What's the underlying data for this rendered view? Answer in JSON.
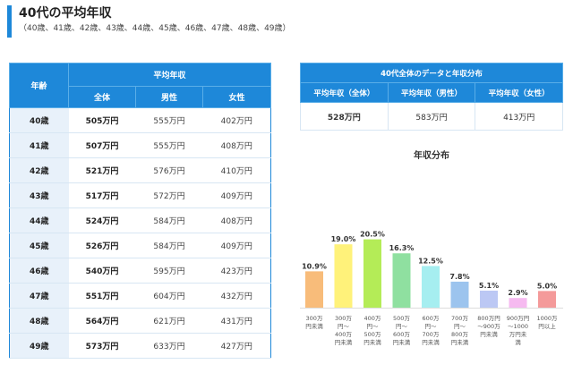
{
  "header": {
    "title": "40代の平均年収",
    "subtitle": "（40歳、41歳、42歳、43歳、44歳、45歳、46歳、47歳、48歳、49歳）"
  },
  "table": {
    "age_header": "年齢",
    "avg_header": "平均年収",
    "col_all": "全体",
    "col_male": "男性",
    "col_female": "女性",
    "rows": [
      {
        "age": "40歳",
        "all": "505万円",
        "male": "555万円",
        "female": "402万円"
      },
      {
        "age": "41歳",
        "all": "507万円",
        "male": "555万円",
        "female": "408万円"
      },
      {
        "age": "42歳",
        "all": "521万円",
        "male": "576万円",
        "female": "410万円"
      },
      {
        "age": "43歳",
        "all": "517万円",
        "male": "572万円",
        "female": "409万円"
      },
      {
        "age": "44歳",
        "all": "524万円",
        "male": "584万円",
        "female": "408万円"
      },
      {
        "age": "45歳",
        "all": "526万円",
        "male": "584万円",
        "female": "409万円"
      },
      {
        "age": "46歳",
        "all": "540万円",
        "male": "595万円",
        "female": "423万円"
      },
      {
        "age": "47歳",
        "all": "551万円",
        "male": "604万円",
        "female": "432万円"
      },
      {
        "age": "48歳",
        "all": "564万円",
        "male": "621万円",
        "female": "431万円"
      },
      {
        "age": "49歳",
        "all": "573万円",
        "male": "633万円",
        "female": "427万円"
      }
    ]
  },
  "summary": {
    "title": "40代全体のデータと年収分布",
    "h_all": "平均年収（全体）",
    "h_male": "平均年収（男性）",
    "h_female": "平均年収（女性）",
    "v_all": "528万円",
    "v_male": "583万円",
    "v_female": "413万円"
  },
  "chart_data": {
    "type": "bar",
    "title": "年収分布",
    "categories": [
      [
        "300万",
        "円未満"
      ],
      [
        "300万",
        "円～",
        "400万",
        "円未満"
      ],
      [
        "400万",
        "円～",
        "500万",
        "円未満"
      ],
      [
        "500万",
        "円～",
        "600万",
        "円未満"
      ],
      [
        "600万",
        "円～",
        "700万",
        "円未満"
      ],
      [
        "700万",
        "円～",
        "800万",
        "円未満"
      ],
      [
        "800万円",
        "～900万",
        "円未満"
      ],
      [
        "900万円",
        "～1000",
        "万円未",
        "満"
      ],
      [
        "1000万",
        "円以上"
      ]
    ],
    "values": [
      10.9,
      19.0,
      20.5,
      16.3,
      12.5,
      7.8,
      5.1,
      2.9,
      5.0
    ],
    "labels": [
      "10.9%",
      "19.0%",
      "20.5%",
      "16.3%",
      "12.5%",
      "7.8%",
      "5.1%",
      "2.9%",
      "5.0%"
    ],
    "colors": [
      "#f8bc7a",
      "#fff27a",
      "#b4ec57",
      "#8fe0a0",
      "#a6eef0",
      "#9cc4ee",
      "#bcc8f4",
      "#f6baf0",
      "#f49a9a"
    ],
    "ylim": [
      0,
      22
    ]
  }
}
